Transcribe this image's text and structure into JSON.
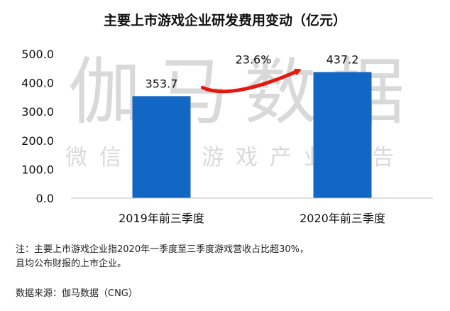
{
  "chart_data": {
    "type": "bar",
    "title": "主要上市游戏企业研发费用变动（亿元）",
    "categories": [
      "2019年前三季度",
      "2020年前三季度"
    ],
    "values": [
      353.7,
      437.2
    ],
    "value_labels": [
      "353.7",
      "437.2"
    ],
    "ylim": [
      0,
      500
    ],
    "yticks": [
      "0.0",
      "100.0",
      "200.0",
      "300.0",
      "400.0",
      "500.0"
    ],
    "xlabel": "",
    "ylabel": "",
    "grid": false,
    "legend": "none",
    "bar_color": "#1266c4",
    "annotation": {
      "text": "23.6%",
      "arrow_color": "#e8160c"
    }
  },
  "watermark": {
    "main": "伽马数据",
    "sub": "微信号：游戏产业报告"
  },
  "notes": {
    "line1": "注：主要上市游戏企业指2020年一季度至三季度游戏营收占比超30%，",
    "line2": "且均公布财报的上市企业。",
    "source": "数据来源：伽马数据（CNG）"
  }
}
